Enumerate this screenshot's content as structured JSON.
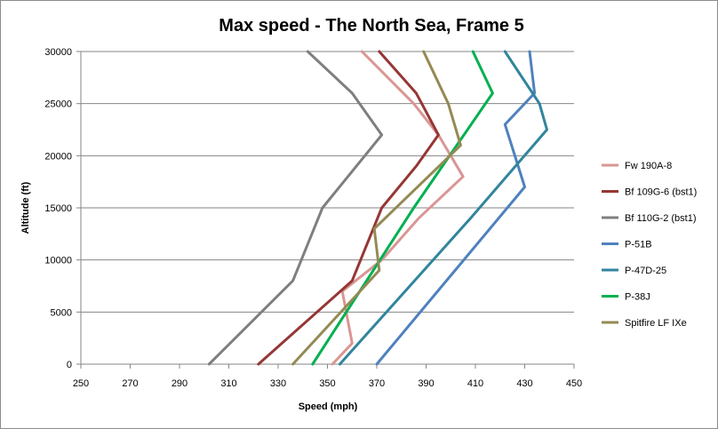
{
  "chart_data": {
    "type": "line",
    "title": "Max speed - The North Sea, Frame 5",
    "xlabel": "Speed (mph)",
    "ylabel": "Altitude (ft)",
    "xlim": [
      250,
      450
    ],
    "ylim": [
      0,
      30000
    ],
    "xticks": [
      250,
      270,
      290,
      310,
      330,
      350,
      370,
      390,
      410,
      430,
      450
    ],
    "yticks": [
      0,
      5000,
      10000,
      15000,
      20000,
      25000,
      30000
    ],
    "grid": "horizontal",
    "legend_position": "right",
    "series": [
      {
        "name": "Fw 190A-8",
        "color": "#d99694",
        "points": [
          [
            352,
            0
          ],
          [
            360,
            2000
          ],
          [
            356,
            7000
          ],
          [
            372,
            10000
          ],
          [
            387,
            14000
          ],
          [
            405,
            18000
          ],
          [
            395,
            22000
          ],
          [
            385,
            25000
          ],
          [
            364,
            30000
          ]
        ]
      },
      {
        "name": "Bf 109G-6 (bst1)",
        "color": "#953735",
        "points": [
          [
            322,
            0
          ],
          [
            360,
            8000
          ],
          [
            372,
            15000
          ],
          [
            386,
            19000
          ],
          [
            395,
            22000
          ],
          [
            386,
            26000
          ],
          [
            371,
            30000
          ]
        ]
      },
      {
        "name": "Bf 110G-2 (bst1)",
        "color": "#7f7f7f",
        "points": [
          [
            302,
            0
          ],
          [
            336,
            8000
          ],
          [
            348,
            15000
          ],
          [
            372,
            22000
          ],
          [
            360,
            26000
          ],
          [
            342,
            30000
          ]
        ]
      },
      {
        "name": "P-51B",
        "color": "#4f81bd",
        "points": [
          [
            370,
            0
          ],
          [
            430,
            17000
          ],
          [
            422,
            23000
          ],
          [
            434,
            26000
          ],
          [
            432,
            30000
          ]
        ]
      },
      {
        "name": "P-47D-25",
        "color": "#31859c",
        "points": [
          [
            355,
            0
          ],
          [
            408,
            14000
          ],
          [
            439,
            22500
          ],
          [
            436,
            25000
          ],
          [
            422,
            30000
          ]
        ]
      },
      {
        "name": "P-38J",
        "color": "#00b050",
        "points": [
          [
            344,
            0
          ],
          [
            385,
            15000
          ],
          [
            417,
            26000
          ],
          [
            409,
            30000
          ]
        ]
      },
      {
        "name": "Spitfire LF IXe",
        "color": "#948a54",
        "points": [
          [
            336,
            0
          ],
          [
            371,
            9000
          ],
          [
            369,
            13000
          ],
          [
            404,
            21000
          ],
          [
            399,
            25000
          ],
          [
            389,
            30000
          ]
        ]
      }
    ]
  }
}
